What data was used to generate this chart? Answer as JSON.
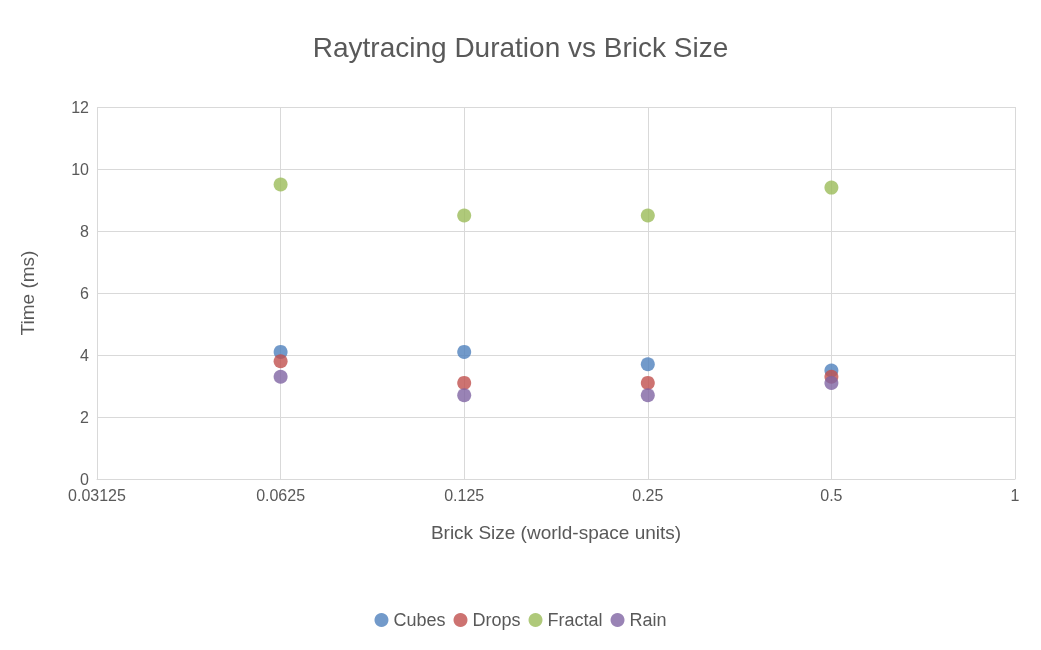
{
  "chart_data": {
    "type": "scatter",
    "title": "Raytracing Duration vs Brick Size",
    "xlabel": "Brick Size (world-space units)",
    "ylabel": "Time (ms)",
    "x": [
      0.0625,
      0.125,
      0.25,
      0.5
    ],
    "series": [
      {
        "name": "Cubes",
        "color": "#4f81bd",
        "values": [
          4.1,
          4.1,
          3.7,
          3.5
        ]
      },
      {
        "name": "Drops",
        "color": "#c0504d",
        "values": [
          3.8,
          3.1,
          3.1,
          3.3
        ]
      },
      {
        "name": "Fractal",
        "color": "#9bbb59",
        "values": [
          9.5,
          8.5,
          8.5,
          9.4
        ]
      },
      {
        "name": "Rain",
        "color": "#8064a2",
        "values": [
          3.3,
          2.7,
          2.7,
          3.1
        ]
      }
    ],
    "log": "x",
    "xlim": [
      0.03125,
      1
    ],
    "xticks": [
      0.03125,
      0.0625,
      0.125,
      0.25,
      0.5,
      1
    ],
    "ylim": [
      0,
      12
    ],
    "yticks": [
      0,
      2,
      4,
      6,
      8,
      10,
      12
    ],
    "grid": true,
    "legend": "bottom",
    "marker": "circle"
  }
}
